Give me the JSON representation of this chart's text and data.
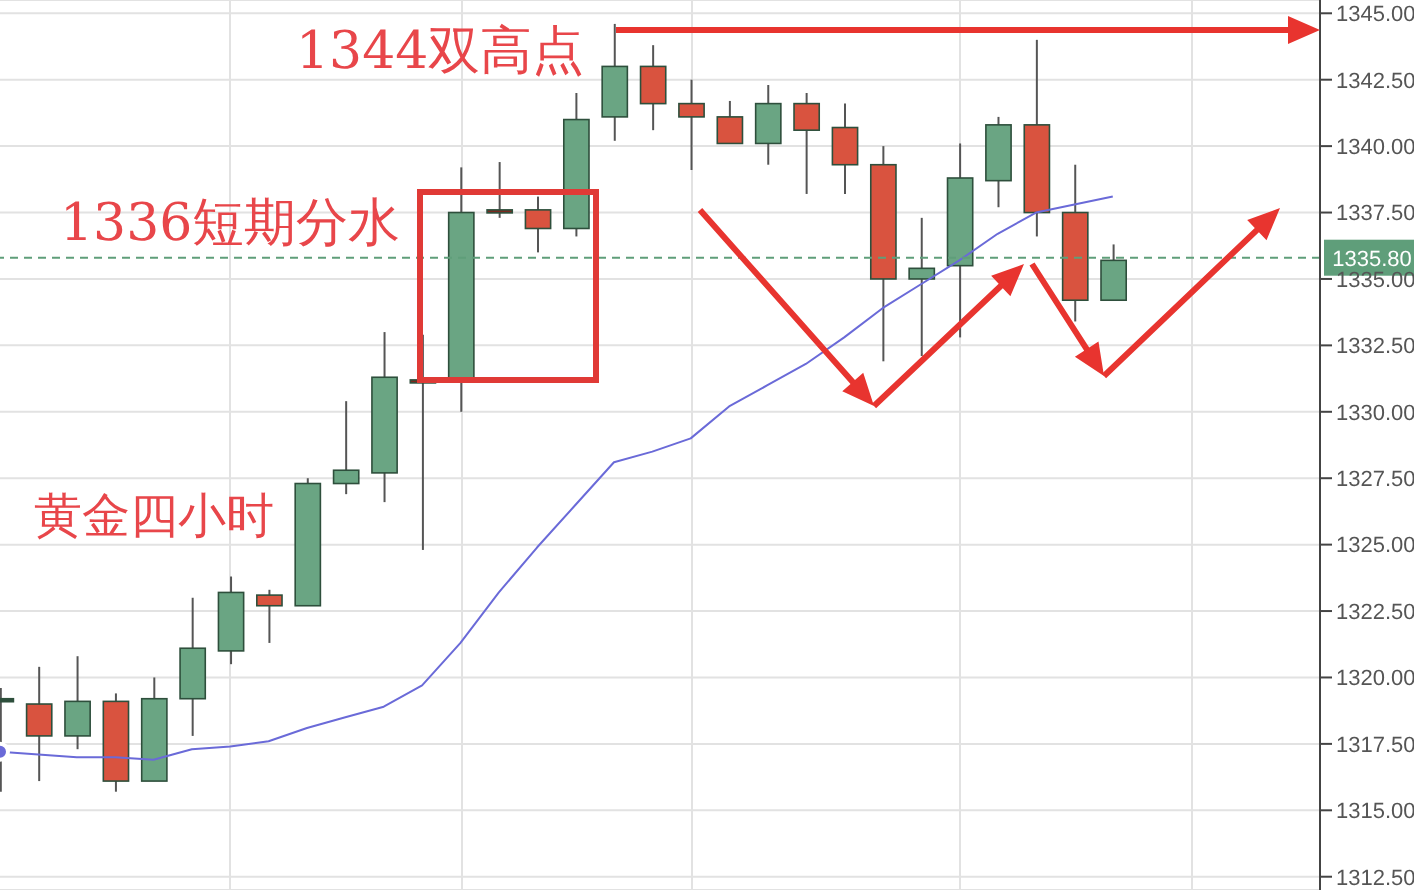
{
  "chart_data": {
    "type": "candlestick",
    "categories": [
      null,
      null,
      null,
      null,
      null,
      null,
      null,
      null,
      null,
      null,
      null,
      null,
      null,
      null,
      null,
      null,
      null,
      null,
      null,
      null,
      null,
      null,
      null,
      null,
      null,
      null,
      null,
      null,
      null,
      null
    ],
    "ohlc": [
      [
        1319.2,
        1319.6,
        1315.7,
        1319.2
      ],
      [
        1319.0,
        1320.4,
        1316.1,
        1317.8
      ],
      [
        1317.8,
        1320.8,
        1317.3,
        1319.1
      ],
      [
        1319.1,
        1319.4,
        1315.7,
        1316.1
      ],
      [
        1316.1,
        1320.0,
        1316.1,
        1319.2
      ],
      [
        1319.2,
        1323.0,
        1317.8,
        1321.1
      ],
      [
        1321.0,
        1323.8,
        1320.5,
        1323.2
      ],
      [
        1323.1,
        1323.3,
        1321.3,
        1322.7
      ],
      [
        1322.7,
        1327.5,
        1322.7,
        1327.3
      ],
      [
        1327.3,
        1330.4,
        1326.9,
        1327.8
      ],
      [
        1327.7,
        1333.0,
        1326.6,
        1331.3
      ],
      [
        1331.2,
        1332.9,
        1324.8,
        1331.2
      ],
      [
        1331.2,
        1339.2,
        1330.0,
        1337.5
      ],
      [
        1337.6,
        1339.4,
        1337.3,
        1337.6
      ],
      [
        1337.6,
        1338.1,
        1336.0,
        1336.9
      ],
      [
        1336.9,
        1342.0,
        1336.6,
        1341.0
      ],
      [
        1341.1,
        1344.6,
        1340.2,
        1343.0
      ],
      [
        1343.0,
        1343.8,
        1340.6,
        1341.6
      ],
      [
        1341.6,
        1342.5,
        1339.1,
        1341.1
      ],
      [
        1341.1,
        1341.7,
        1340.1,
        1340.1
      ],
      [
        1340.1,
        1342.3,
        1339.3,
        1341.6
      ],
      [
        1341.6,
        1342.0,
        1338.2,
        1340.6
      ],
      [
        1340.7,
        1341.6,
        1338.2,
        1339.3
      ],
      [
        1339.3,
        1340.0,
        1331.9,
        1335.0
      ],
      [
        1335.0,
        1337.3,
        1332.1,
        1335.4
      ],
      [
        1335.5,
        1340.1,
        1332.8,
        1338.8
      ],
      [
        1338.7,
        1341.1,
        1337.7,
        1340.8
      ],
      [
        1340.8,
        1344.0,
        1336.6,
        1337.5
      ],
      [
        1337.5,
        1339.3,
        1333.4,
        1334.2
      ],
      [
        1334.2,
        1336.3,
        1334.2,
        1335.7
      ]
    ],
    "colors": [
      "#2e4f3c",
      "#d9533f",
      "#6aa583",
      "#d9533f",
      "#6aa583",
      "#6aa583",
      "#6aa583",
      "#d9533f",
      "#6aa583",
      "#6aa583",
      "#6aa583",
      "#7a2a20",
      "#6aa583",
      "#7a2a20",
      "#d9533f",
      "#6aa583",
      "#6aa583",
      "#d9533f",
      "#d9533f",
      "#d9533f",
      "#6aa583",
      "#d9533f",
      "#d9533f",
      "#d9533f",
      "#6aa583",
      "#6aa583",
      "#6aa583",
      "#d9533f",
      "#d9533f",
      "#6aa583"
    ],
    "series": [
      {
        "type": "line",
        "color": "#6a6ad8",
        "values": [
          1317.2,
          1317.1,
          1317.0,
          1317.0,
          1316.9,
          1317.3,
          1317.4,
          1317.6,
          1318.1,
          1318.5,
          1318.9,
          1319.7,
          1321.3,
          1323.2,
          1324.9,
          1326.5,
          1328.1,
          1328.5,
          1329.0,
          1330.2,
          1331.0,
          1331.8,
          1332.8,
          1333.9,
          1334.8,
          1335.7,
          1336.7,
          1337.5,
          1337.8,
          1338.1
        ]
      }
    ],
    "ylim": [
      1312,
      1345.5
    ],
    "yticks": [
      {
        "value": 1312.5,
        "label": "1312.50"
      },
      {
        "value": 1315,
        "label": "1315.00"
      },
      {
        "value": 1317.5,
        "label": "1317.50"
      },
      {
        "value": 1320,
        "label": "1320.00"
      },
      {
        "value": 1322.5,
        "label": "1322.50"
      },
      {
        "value": 1325,
        "label": "1325.00"
      },
      {
        "value": 1327.5,
        "label": "1327.50"
      },
      {
        "value": 1330,
        "label": "1330.00"
      },
      {
        "value": 1332.5,
        "label": "1332.50"
      },
      {
        "value": 1335,
        "label": "1335.00"
      },
      {
        "value": 1337.5,
        "label": "1337.50"
      },
      {
        "value": 1340,
        "label": "1340.00"
      },
      {
        "value": 1342.5,
        "label": "1342.50"
      },
      {
        "value": 1345,
        "label": "1345.00"
      }
    ],
    "ref_lines": [
      {
        "axis": "y",
        "value": 1335.8,
        "label": "1335.80",
        "color": "#5f9e7a",
        "line_style": "dashed"
      }
    ],
    "annotations": [
      "1344双高点",
      "1336短期分水",
      "黄金四小时"
    ],
    "grid": true,
    "tick_labels": "y",
    "marker": "none"
  }
}
